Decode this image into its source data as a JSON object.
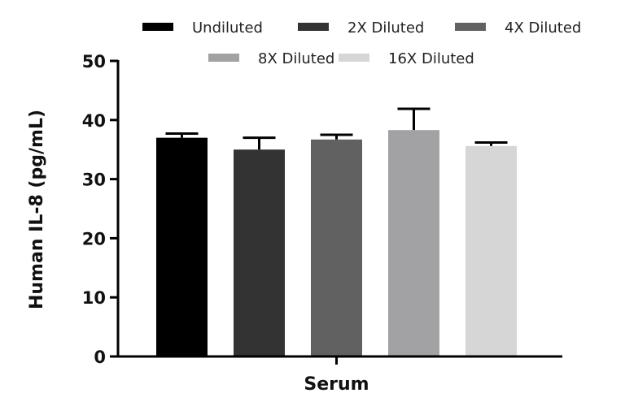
{
  "chart_data": {
    "type": "bar",
    "title": "",
    "xlabel": "",
    "ylabel": "Human IL-8 (pg/mL)",
    "categories": [
      "Serum"
    ],
    "ylim": [
      0,
      50
    ],
    "yticks": [
      0,
      10,
      20,
      30,
      40,
      50
    ],
    "grid": false,
    "legend_position": "top",
    "series": [
      {
        "name": "Undiluted",
        "values": [
          37.0
        ],
        "error": [
          0.7
        ],
        "color": "#000000"
      },
      {
        "name": "2X Diluted",
        "values": [
          35.0
        ],
        "error": [
          2.0
        ],
        "color": "#333333"
      },
      {
        "name": "4X Diluted",
        "values": [
          36.7
        ],
        "error": [
          0.8
        ],
        "color": "#616161"
      },
      {
        "name": "8X Diluted",
        "values": [
          38.3
        ],
        "error": [
          3.6
        ],
        "color": "#a2a2a4"
      },
      {
        "name": "16X Diluted",
        "values": [
          35.6
        ],
        "error": [
          0.6
        ],
        "color": "#d6d6d6"
      }
    ]
  },
  "legend": {
    "rows": [
      [
        0,
        1,
        2
      ],
      [
        3,
        4
      ]
    ]
  }
}
